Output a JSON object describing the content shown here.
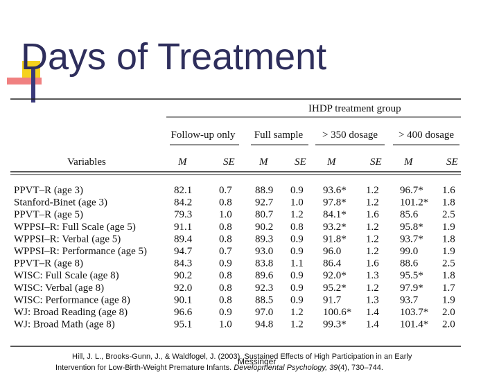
{
  "title": "Days of Treatment",
  "table": {
    "group_label": "IHDP treatment group",
    "groups": [
      "Follow-up only",
      "Full sample",
      "> 350 dosage",
      "> 400 dosage"
    ],
    "header": [
      "Variables",
      "M",
      "SE",
      "M",
      "SE",
      "M",
      "SE",
      "M",
      "SE"
    ],
    "rows": [
      [
        "PPVT–R (age 3)",
        "82.1",
        "0.7",
        "88.9",
        "0.9",
        "93.6*",
        "1.2",
        "96.7*",
        "1.6"
      ],
      [
        "Stanford-Binet (age 3)",
        "84.2",
        "0.8",
        "92.7",
        "1.0",
        "97.8*",
        "1.2",
        "101.2*",
        "1.8"
      ],
      [
        "PPVT–R (age 5)",
        "79.3",
        "1.0",
        "80.7",
        "1.2",
        "84.1*",
        "1.6",
        "85.6",
        "2.5"
      ],
      [
        "WPPSI–R: Full Scale (age 5)",
        "91.1",
        "0.8",
        "90.2",
        "0.8",
        "93.2*",
        "1.2",
        "95.8*",
        "1.9"
      ],
      [
        "WPPSI–R: Verbal (age 5)",
        "89.4",
        "0.8",
        "89.3",
        "0.9",
        "91.8*",
        "1.2",
        "93.7*",
        "1.8"
      ],
      [
        "WPPSI–R: Performance (age 5)",
        "94.7",
        "0.7",
        "93.0",
        "0.9",
        "96.0",
        "1.2",
        "99.0",
        "1.9"
      ],
      [
        "PPVT–R (age 8)",
        "84.3",
        "0.9",
        "83.8",
        "1.1",
        "86.4",
        "1.6",
        "88.6",
        "2.5"
      ],
      [
        "WISC: Full Scale (age 8)",
        "90.2",
        "0.8",
        "89.6",
        "0.9",
        "92.0*",
        "1.3",
        "95.5*",
        "1.8"
      ],
      [
        "WISC: Verbal (age 8)",
        "92.0",
        "0.8",
        "92.3",
        "0.9",
        "95.2*",
        "1.2",
        "97.9*",
        "1.7"
      ],
      [
        "WISC: Performance (age 8)",
        "90.1",
        "0.8",
        "88.5",
        "0.9",
        "91.7",
        "1.3",
        "93.7",
        "1.9"
      ],
      [
        "WJ: Broad Reading (age 8)",
        "96.6",
        "0.9",
        "97.0",
        "1.2",
        "100.6*",
        "1.4",
        "103.7*",
        "2.0"
      ],
      [
        "WJ: Broad Math (age 8)",
        "95.1",
        "1.0",
        "94.8",
        "1.2",
        "99.3*",
        "1.4",
        "101.4*",
        "2.0"
      ]
    ]
  },
  "citation": {
    "line1": "Hill, J. L., Brooks-Gunn, J., & Waldfogel, J. (2003). Sustained Effects of High Participation in an Early",
    "line2": "Intervention for Low-Birth-Weight Premature Infants. ",
    "journal": "Developmental Psychology, ",
    "volume": "39",
    "pages": "(4), 730–744."
  },
  "footer": "Messinger"
}
